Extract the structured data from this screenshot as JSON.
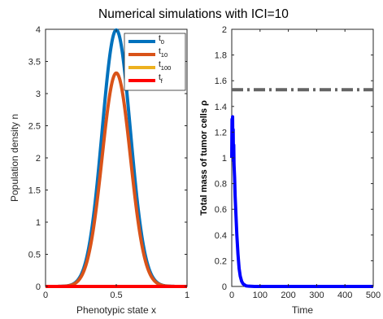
{
  "figure": {
    "title": "Numerical simulations with ICI=10"
  },
  "chart_data": [
    {
      "type": "line",
      "title": "",
      "xlabel": "Phenotypic state x",
      "ylabel": "Population density n",
      "xlim": [
        0,
        1
      ],
      "ylim": [
        0,
        4
      ],
      "xticks": [
        "0",
        "0.5",
        "1"
      ],
      "yticks": [
        "0",
        "0.5",
        "1",
        "1.5",
        "2",
        "2.5",
        "3",
        "3.5",
        "4"
      ],
      "grid": false,
      "legend_position": "top-right",
      "series": [
        {
          "name": "t",
          "sub": "0",
          "color": "#0072bd",
          "shape": "gaussian",
          "center": 0.5,
          "peak": 3.99,
          "width": 0.1
        },
        {
          "name": "t",
          "sub": "10",
          "color": "#d95319",
          "shape": "gaussian",
          "center": 0.5,
          "peak": 3.32,
          "width": 0.1
        },
        {
          "name": "t",
          "sub": "100",
          "color": "#edb120",
          "shape": "flat",
          "value": 0
        },
        {
          "name": "t",
          "sub": "f",
          "color": "#ff0000",
          "shape": "flat",
          "value": 0
        }
      ]
    },
    {
      "type": "line",
      "title": "",
      "xlabel": "Time",
      "ylabel": "Total mass of tumor cells ρ",
      "xlim": [
        0,
        500
      ],
      "ylim": [
        0,
        2
      ],
      "xticks": [
        "0",
        "100",
        "200",
        "300",
        "400",
        "500"
      ],
      "yticks": [
        "0",
        "0.2",
        "0.4",
        "0.6",
        "0.8",
        "1",
        "1.2",
        "1.4",
        "1.6",
        "1.8",
        "2"
      ],
      "grid": false,
      "reference_line": {
        "y": 1.53,
        "color": "#646464",
        "style": "dash-dot"
      },
      "series": [
        {
          "name": "",
          "color": "#0000ff",
          "x": [
            0,
            1,
            2,
            3,
            4,
            5,
            6,
            7,
            8,
            10,
            12,
            15,
            18,
            22,
            26,
            30,
            35,
            40,
            50,
            60,
            80,
            100,
            500
          ],
          "y": [
            1.0,
            1.3,
            1.02,
            1.32,
            1.05,
            1.22,
            0.98,
            1.1,
            0.95,
            0.85,
            0.7,
            0.55,
            0.4,
            0.25,
            0.14,
            0.08,
            0.04,
            0.02,
            0.005,
            0.002,
            0,
            0,
            0
          ]
        }
      ]
    }
  ]
}
